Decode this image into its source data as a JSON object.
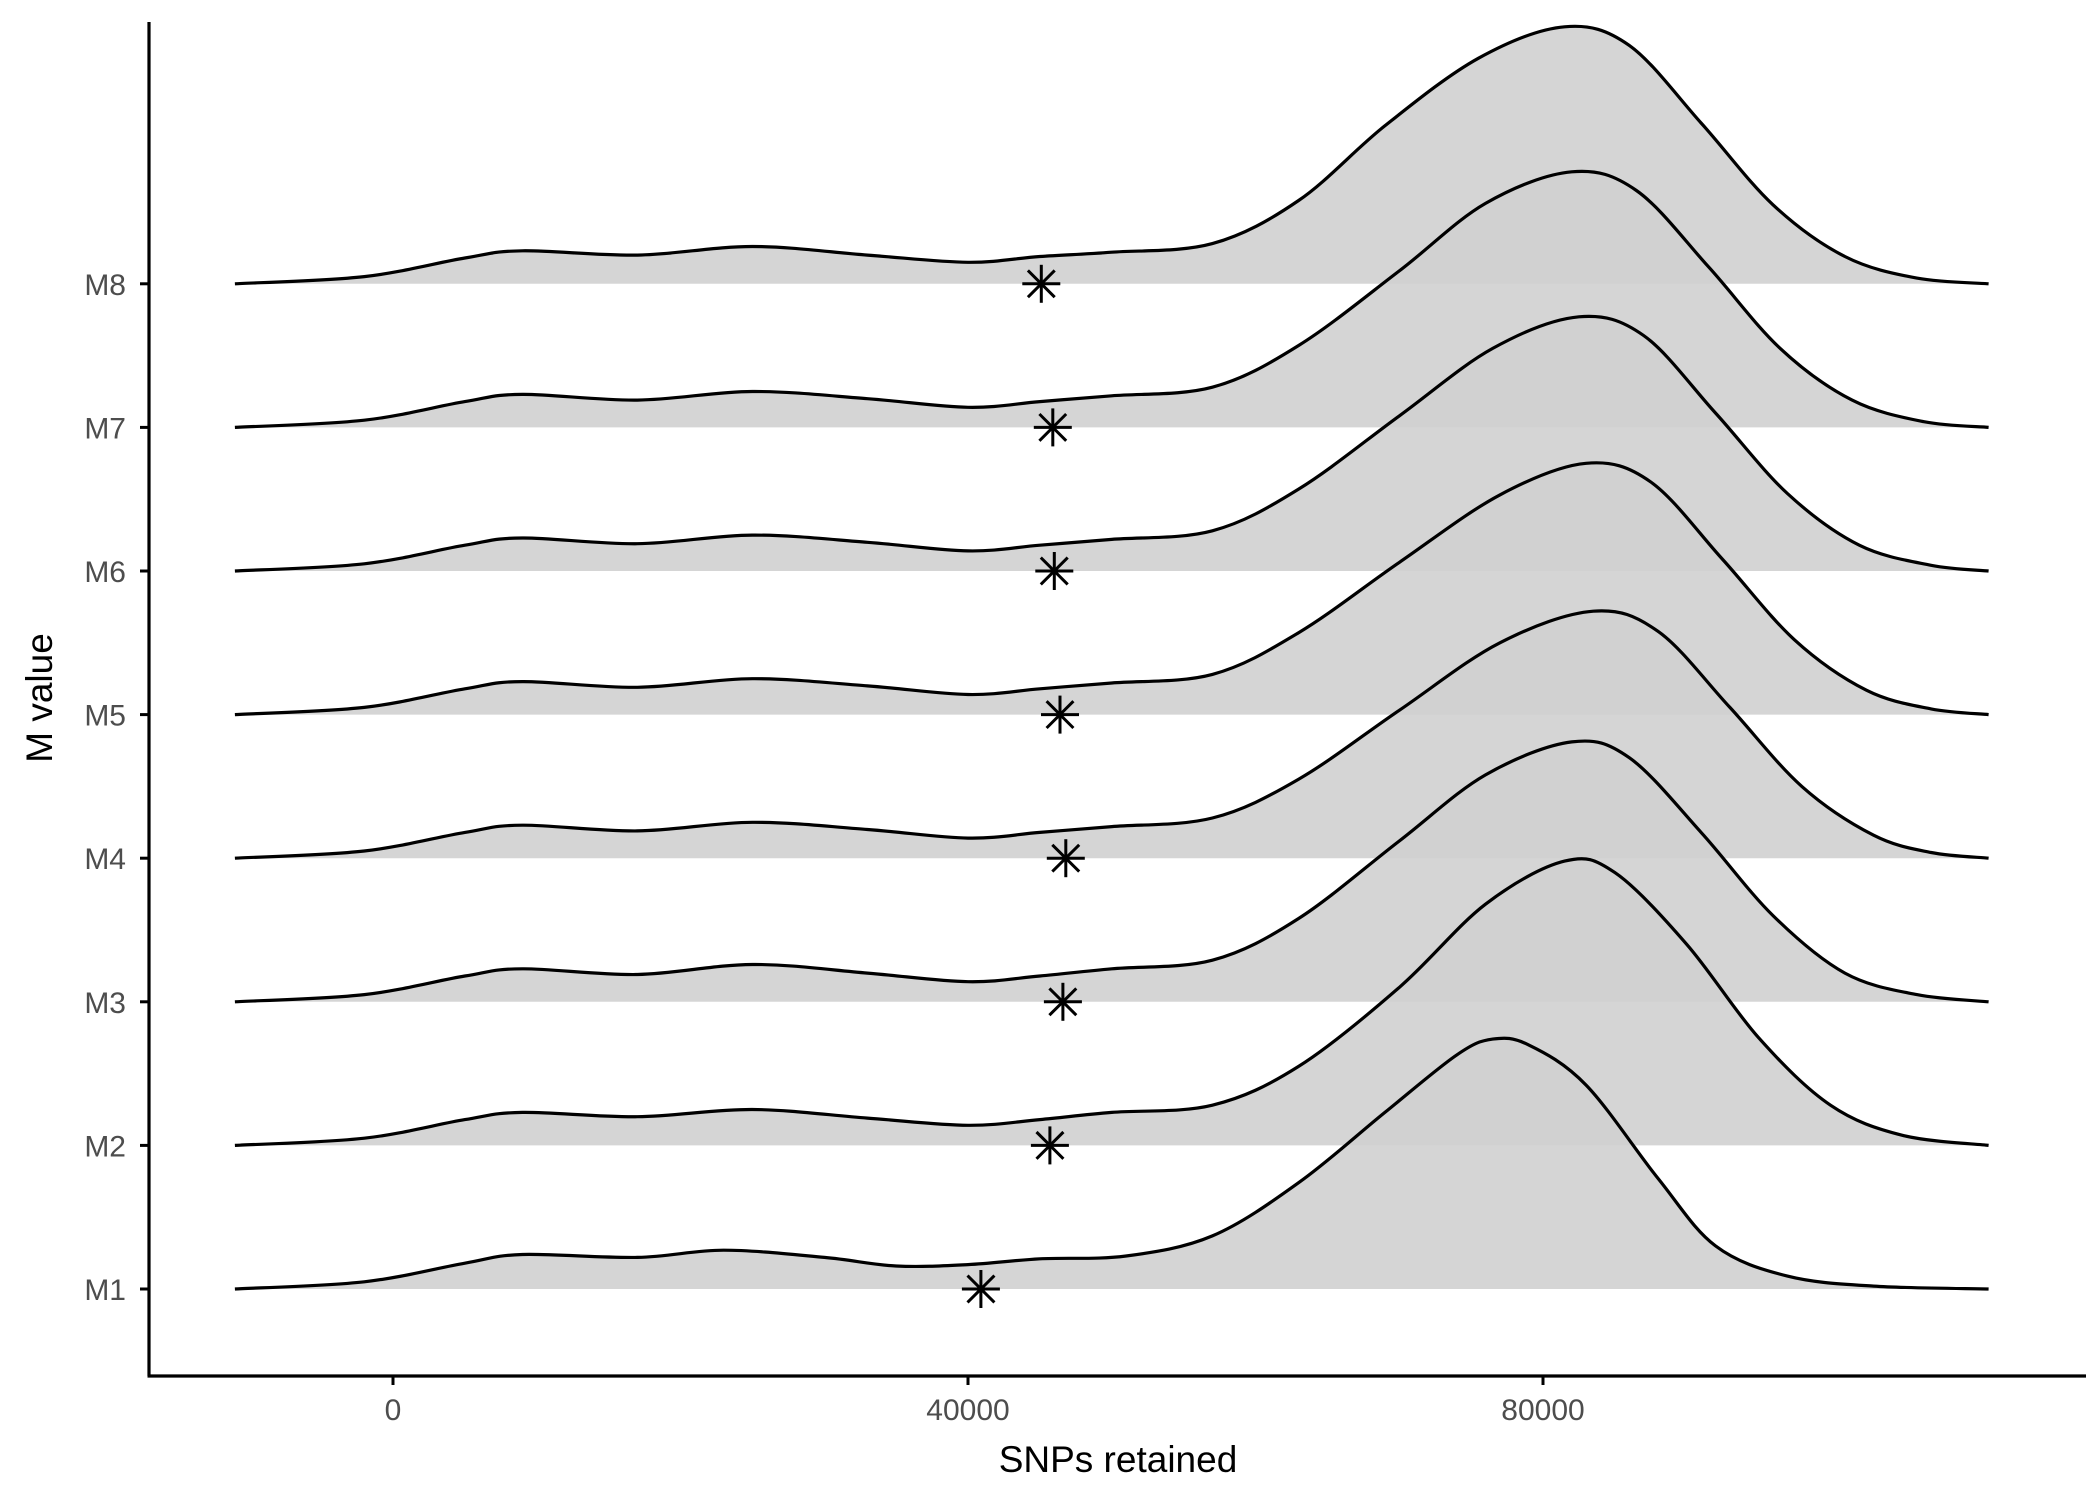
{
  "chart_data": {
    "type": "ridgeline",
    "title": "",
    "xlabel": "SNPs retained",
    "ylabel": "M value",
    "xlim": [
      -17000,
      117000
    ],
    "x_ticks": [
      0,
      40000,
      80000
    ],
    "x_tick_labels": [
      "0",
      "40000",
      "80000"
    ],
    "categories": [
      "M1",
      "M2",
      "M3",
      "M4",
      "M5",
      "M6",
      "M7",
      "M8"
    ],
    "grid": false,
    "legend": "none",
    "density_range": [
      -11000,
      111000
    ],
    "series": [
      {
        "category": "M1",
        "mean_marker": 40900,
        "peak_x": 76500,
        "ridge_peak_height": 1.74,
        "density_points": [
          [
            -11000,
            0
          ],
          [
            -2000,
            0.05
          ],
          [
            5000,
            0.18
          ],
          [
            9000,
            0.24
          ],
          [
            17000,
            0.22
          ],
          [
            23000,
            0.27
          ],
          [
            30000,
            0.22
          ],
          [
            35000,
            0.16
          ],
          [
            40000,
            0.17
          ],
          [
            45000,
            0.21
          ],
          [
            51000,
            0.23
          ],
          [
            57000,
            0.37
          ],
          [
            63000,
            0.74
          ],
          [
            69000,
            1.23
          ],
          [
            74000,
            1.63
          ],
          [
            76500,
            1.74
          ],
          [
            79000,
            1.7
          ],
          [
            83000,
            1.42
          ],
          [
            88000,
            0.77
          ],
          [
            92000,
            0.3
          ],
          [
            97000,
            0.09
          ],
          [
            103000,
            0.02
          ],
          [
            111000,
            0
          ]
        ]
      },
      {
        "category": "M2",
        "mean_marker": 45700,
        "peak_x": 81500,
        "ridge_peak_height": 1.98,
        "density_points": [
          [
            -11000,
            0
          ],
          [
            -2000,
            0.05
          ],
          [
            5000,
            0.18
          ],
          [
            9000,
            0.23
          ],
          [
            17000,
            0.2
          ],
          [
            25000,
            0.25
          ],
          [
            33000,
            0.19
          ],
          [
            40000,
            0.14
          ],
          [
            45000,
            0.18
          ],
          [
            50000,
            0.23
          ],
          [
            57000,
            0.28
          ],
          [
            63000,
            0.55
          ],
          [
            70000,
            1.1
          ],
          [
            76000,
            1.68
          ],
          [
            81500,
            1.98
          ],
          [
            85000,
            1.9
          ],
          [
            90000,
            1.4
          ],
          [
            95000,
            0.75
          ],
          [
            100000,
            0.28
          ],
          [
            105000,
            0.07
          ],
          [
            111000,
            0
          ]
        ]
      },
      {
        "category": "M3",
        "mean_marker": 46600,
        "peak_x": 82000,
        "ridge_peak_height": 1.81,
        "density_points": [
          [
            -11000,
            0
          ],
          [
            -2000,
            0.05
          ],
          [
            5000,
            0.18
          ],
          [
            9000,
            0.23
          ],
          [
            17000,
            0.19
          ],
          [
            25000,
            0.26
          ],
          [
            33000,
            0.2
          ],
          [
            40000,
            0.14
          ],
          [
            45000,
            0.18
          ],
          [
            50000,
            0.23
          ],
          [
            57000,
            0.29
          ],
          [
            63000,
            0.58
          ],
          [
            70000,
            1.12
          ],
          [
            76000,
            1.58
          ],
          [
            82000,
            1.81
          ],
          [
            86000,
            1.7
          ],
          [
            91000,
            1.18
          ],
          [
            96000,
            0.6
          ],
          [
            101000,
            0.2
          ],
          [
            106000,
            0.05
          ],
          [
            111000,
            0
          ]
        ]
      },
      {
        "category": "M4",
        "mean_marker": 46800,
        "peak_x": 83500,
        "ridge_peak_height": 1.72,
        "density_points": [
          [
            -11000,
            0
          ],
          [
            -2000,
            0.05
          ],
          [
            5000,
            0.18
          ],
          [
            9000,
            0.23
          ],
          [
            17000,
            0.19
          ],
          [
            25000,
            0.25
          ],
          [
            33000,
            0.2
          ],
          [
            40000,
            0.14
          ],
          [
            45000,
            0.18
          ],
          [
            50000,
            0.22
          ],
          [
            57000,
            0.28
          ],
          [
            63000,
            0.55
          ],
          [
            70000,
            1.03
          ],
          [
            77000,
            1.5
          ],
          [
            83500,
            1.72
          ],
          [
            88000,
            1.58
          ],
          [
            93000,
            1.05
          ],
          [
            98000,
            0.5
          ],
          [
            103000,
            0.16
          ],
          [
            107000,
            0.04
          ],
          [
            111000,
            0
          ]
        ]
      },
      {
        "category": "M5",
        "mean_marker": 46400,
        "peak_x": 83000,
        "ridge_peak_height": 1.75,
        "density_points": [
          [
            -11000,
            0
          ],
          [
            -2000,
            0.05
          ],
          [
            5000,
            0.18
          ],
          [
            9000,
            0.23
          ],
          [
            17000,
            0.19
          ],
          [
            25000,
            0.25
          ],
          [
            33000,
            0.2
          ],
          [
            40000,
            0.14
          ],
          [
            45000,
            0.18
          ],
          [
            50000,
            0.22
          ],
          [
            57000,
            0.28
          ],
          [
            63000,
            0.57
          ],
          [
            70000,
            1.06
          ],
          [
            77000,
            1.53
          ],
          [
            83000,
            1.75
          ],
          [
            87500,
            1.62
          ],
          [
            92500,
            1.08
          ],
          [
            97500,
            0.52
          ],
          [
            102500,
            0.17
          ],
          [
            107000,
            0.04
          ],
          [
            111000,
            0
          ]
        ]
      },
      {
        "category": "M6",
        "mean_marker": 46000,
        "peak_x": 82500,
        "ridge_peak_height": 1.77,
        "density_points": [
          [
            -11000,
            0
          ],
          [
            -2000,
            0.05
          ],
          [
            5000,
            0.18
          ],
          [
            9000,
            0.23
          ],
          [
            17000,
            0.19
          ],
          [
            25000,
            0.25
          ],
          [
            33000,
            0.2
          ],
          [
            40000,
            0.14
          ],
          [
            45000,
            0.18
          ],
          [
            50000,
            0.22
          ],
          [
            57000,
            0.28
          ],
          [
            63000,
            0.57
          ],
          [
            70000,
            1.08
          ],
          [
            76500,
            1.55
          ],
          [
            82500,
            1.77
          ],
          [
            87000,
            1.64
          ],
          [
            92000,
            1.1
          ],
          [
            97000,
            0.54
          ],
          [
            102000,
            0.18
          ],
          [
            107000,
            0.04
          ],
          [
            111000,
            0
          ]
        ]
      },
      {
        "category": "M7",
        "mean_marker": 45900,
        "peak_x": 82000,
        "ridge_peak_height": 1.78,
        "density_points": [
          [
            -11000,
            0
          ],
          [
            -2000,
            0.05
          ],
          [
            5000,
            0.18
          ],
          [
            9000,
            0.23
          ],
          [
            17000,
            0.19
          ],
          [
            25000,
            0.25
          ],
          [
            33000,
            0.2
          ],
          [
            40000,
            0.14
          ],
          [
            45000,
            0.18
          ],
          [
            50000,
            0.22
          ],
          [
            57000,
            0.28
          ],
          [
            63000,
            0.57
          ],
          [
            70000,
            1.09
          ],
          [
            76000,
            1.56
          ],
          [
            82000,
            1.78
          ],
          [
            86500,
            1.65
          ],
          [
            91500,
            1.12
          ],
          [
            96500,
            0.55
          ],
          [
            101500,
            0.19
          ],
          [
            106500,
            0.04
          ],
          [
            111000,
            0
          ]
        ]
      },
      {
        "category": "M8",
        "mean_marker": 45100,
        "peak_x": 81500,
        "ridge_peak_height": 1.79,
        "density_points": [
          [
            -11000,
            0
          ],
          [
            -2000,
            0.05
          ],
          [
            5000,
            0.18
          ],
          [
            9000,
            0.23
          ],
          [
            17000,
            0.2
          ],
          [
            25000,
            0.26
          ],
          [
            33000,
            0.2
          ],
          [
            40000,
            0.15
          ],
          [
            45000,
            0.19
          ],
          [
            50000,
            0.22
          ],
          [
            57000,
            0.28
          ],
          [
            63000,
            0.58
          ],
          [
            69000,
            1.1
          ],
          [
            75500,
            1.57
          ],
          [
            81500,
            1.79
          ],
          [
            86000,
            1.66
          ],
          [
            91000,
            1.12
          ],
          [
            96000,
            0.55
          ],
          [
            101000,
            0.19
          ],
          [
            106000,
            0.04
          ],
          [
            111000,
            0
          ]
        ]
      }
    ]
  },
  "colors": {
    "fill": "#d0d0d0",
    "line": "#000000",
    "axis": "#000000",
    "tick_text": "#4d4d4d"
  }
}
